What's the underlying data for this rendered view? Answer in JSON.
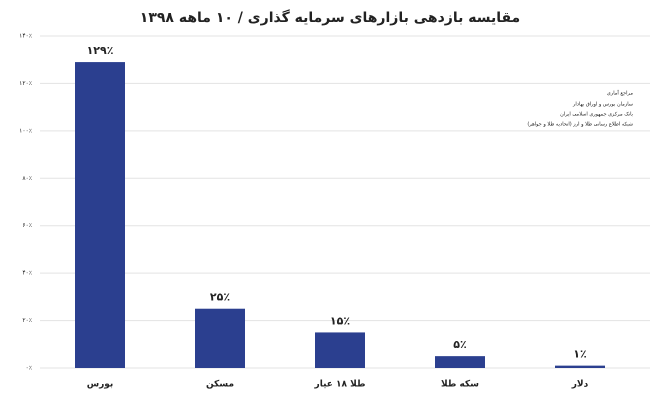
{
  "chart_data": {
    "type": "bar",
    "title": "مقایسه بازدهی بازارهای سرمایه گذاری / ۱۰ ماهه ۱۳۹۸",
    "categories": [
      "بورس",
      "مسکن",
      "طلا ۱۸ عیار",
      "سکه طلا",
      "دلار"
    ],
    "values": [
      129,
      25,
      15,
      5,
      1
    ],
    "value_labels": [
      "۱۲۹٪",
      "۲۵٪",
      "۱۵٪",
      "۵٪",
      "۱٪"
    ],
    "color": "#2b3f8f",
    "ylim": [
      0,
      140
    ],
    "yticks": [
      {
        "value": 0,
        "label": "۰٪"
      },
      {
        "value": 20,
        "label": "۲۰٪"
      },
      {
        "value": 40,
        "label": "۴۰٪"
      },
      {
        "value": 60,
        "label": "۶۰٪"
      },
      {
        "value": 80,
        "label": "۸۰٪"
      },
      {
        "value": 100,
        "label": "۱۰۰٪"
      },
      {
        "value": 120,
        "label": "۱۲۰٪"
      },
      {
        "value": 140,
        "label": "۱۴۰٪"
      }
    ],
    "grid": true,
    "sources": {
      "title": "مراجع آماری",
      "items": [
        "سازمان بورس و اوراق بهادار",
        "بانک مرکزی جمهوری اسلامی ایران",
        "شبکه اطلاع رسانی طلا و ارز (اتحادیه طلا و جواهر)"
      ]
    }
  }
}
